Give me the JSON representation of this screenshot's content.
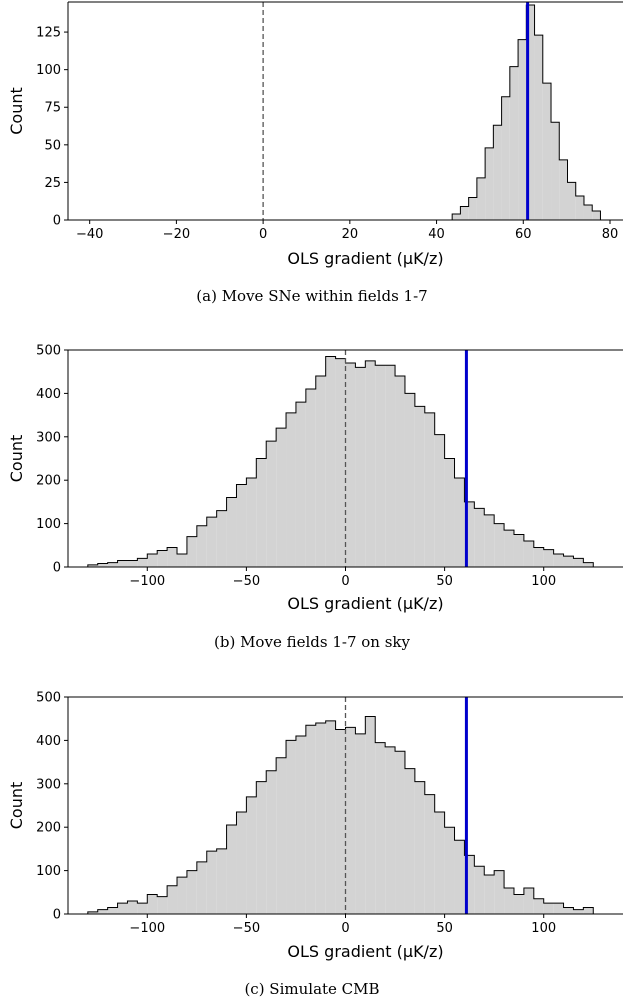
{
  "chart_data": [
    {
      "type": "bar",
      "caption": "(a) Move SNe within fields 1-7",
      "xlabel": "OLS gradient (μK/z)",
      "ylabel": "Count",
      "xlim": [
        -45,
        83
      ],
      "ylim": [
        0,
        145
      ],
      "xticks": [
        -40,
        -20,
        0,
        20,
        40,
        60,
        80
      ],
      "yticks": [
        0,
        25,
        50,
        75,
        100,
        125
      ],
      "grid": false,
      "observed_line": {
        "x": 61,
        "color": "#0000cc"
      },
      "zero_line": {
        "x": 0,
        "color": "#555555"
      },
      "bins": [
        {
          "x0": 43.6,
          "x1": 45.5,
          "count": 4
        },
        {
          "x0": 45.5,
          "x1": 47.4,
          "count": 9
        },
        {
          "x0": 47.4,
          "x1": 49.3,
          "count": 15
        },
        {
          "x0": 49.3,
          "x1": 51.2,
          "count": 28
        },
        {
          "x0": 51.2,
          "x1": 53.1,
          "count": 48
        },
        {
          "x0": 53.1,
          "x1": 55.0,
          "count": 63
        },
        {
          "x0": 55.0,
          "x1": 56.9,
          "count": 82
        },
        {
          "x0": 56.9,
          "x1": 58.8,
          "count": 102
        },
        {
          "x0": 58.8,
          "x1": 60.7,
          "count": 120
        },
        {
          "x0": 60.7,
          "x1": 62.6,
          "count": 143
        },
        {
          "x0": 62.6,
          "x1": 64.5,
          "count": 123
        },
        {
          "x0": 64.5,
          "x1": 66.4,
          "count": 91
        },
        {
          "x0": 66.4,
          "x1": 68.3,
          "count": 65
        },
        {
          "x0": 68.3,
          "x1": 70.2,
          "count": 40
        },
        {
          "x0": 70.2,
          "x1": 72.1,
          "count": 25
        },
        {
          "x0": 72.1,
          "x1": 74.0,
          "count": 16
        },
        {
          "x0": 74.0,
          "x1": 75.9,
          "count": 10
        },
        {
          "x0": 75.9,
          "x1": 77.8,
          "count": 6
        }
      ]
    },
    {
      "type": "bar",
      "caption": "(b) Move fields 1-7 on sky",
      "xlabel": "OLS gradient (μK/z)",
      "ylabel": "Count",
      "xlim": [
        -140,
        140
      ],
      "ylim": [
        0,
        500
      ],
      "xticks": [
        -100,
        -50,
        0,
        50,
        100
      ],
      "yticks": [
        0,
        100,
        200,
        300,
        400,
        500
      ],
      "grid": false,
      "observed_line": {
        "x": 61,
        "color": "#0000cc"
      },
      "zero_line": {
        "x": 0,
        "color": "#555555"
      },
      "bins": [
        {
          "x0": -130,
          "x1": -125,
          "count": 5
        },
        {
          "x0": -125,
          "x1": -120,
          "count": 8
        },
        {
          "x0": -120,
          "x1": -115,
          "count": 10
        },
        {
          "x0": -115,
          "x1": -110,
          "count": 15
        },
        {
          "x0": -110,
          "x1": -105,
          "count": 15
        },
        {
          "x0": -105,
          "x1": -100,
          "count": 20
        },
        {
          "x0": -100,
          "x1": -95,
          "count": 30
        },
        {
          "x0": -95,
          "x1": -90,
          "count": 38
        },
        {
          "x0": -90,
          "x1": -85,
          "count": 45
        },
        {
          "x0": -85,
          "x1": -80,
          "count": 30
        },
        {
          "x0": -80,
          "x1": -75,
          "count": 70
        },
        {
          "x0": -75,
          "x1": -70,
          "count": 95
        },
        {
          "x0": -70,
          "x1": -65,
          "count": 115
        },
        {
          "x0": -65,
          "x1": -60,
          "count": 130
        },
        {
          "x0": -60,
          "x1": -55,
          "count": 160
        },
        {
          "x0": -55,
          "x1": -50,
          "count": 190
        },
        {
          "x0": -50,
          "x1": -45,
          "count": 205
        },
        {
          "x0": -45,
          "x1": -40,
          "count": 250
        },
        {
          "x0": -40,
          "x1": -35,
          "count": 290
        },
        {
          "x0": -35,
          "x1": -30,
          "count": 320
        },
        {
          "x0": -30,
          "x1": -25,
          "count": 355
        },
        {
          "x0": -25,
          "x1": -20,
          "count": 380
        },
        {
          "x0": -20,
          "x1": -15,
          "count": 410
        },
        {
          "x0": -15,
          "x1": -10,
          "count": 440
        },
        {
          "x0": -10,
          "x1": -5,
          "count": 485
        },
        {
          "x0": -5,
          "x1": 0,
          "count": 480
        },
        {
          "x0": 0,
          "x1": 5,
          "count": 470
        },
        {
          "x0": 5,
          "x1": 10,
          "count": 460
        },
        {
          "x0": 10,
          "x1": 15,
          "count": 475
        },
        {
          "x0": 15,
          "x1": 20,
          "count": 465
        },
        {
          "x0": 20,
          "x1": 25,
          "count": 465
        },
        {
          "x0": 25,
          "x1": 30,
          "count": 440
        },
        {
          "x0": 30,
          "x1": 35,
          "count": 400
        },
        {
          "x0": 35,
          "x1": 40,
          "count": 370
        },
        {
          "x0": 40,
          "x1": 45,
          "count": 355
        },
        {
          "x0": 45,
          "x1": 50,
          "count": 305
        },
        {
          "x0": 50,
          "x1": 55,
          "count": 250
        },
        {
          "x0": 55,
          "x1": 60,
          "count": 205
        },
        {
          "x0": 60,
          "x1": 65,
          "count": 150
        },
        {
          "x0": 65,
          "x1": 70,
          "count": 135
        },
        {
          "x0": 70,
          "x1": 75,
          "count": 120
        },
        {
          "x0": 75,
          "x1": 80,
          "count": 100
        },
        {
          "x0": 80,
          "x1": 85,
          "count": 85
        },
        {
          "x0": 85,
          "x1": 90,
          "count": 75
        },
        {
          "x0": 90,
          "x1": 95,
          "count": 60
        },
        {
          "x0": 95,
          "x1": 100,
          "count": 45
        },
        {
          "x0": 100,
          "x1": 105,
          "count": 40
        },
        {
          "x0": 105,
          "x1": 110,
          "count": 30
        },
        {
          "x0": 110,
          "x1": 115,
          "count": 25
        },
        {
          "x0": 115,
          "x1": 120,
          "count": 20
        },
        {
          "x0": 120,
          "x1": 125,
          "count": 10
        }
      ]
    },
    {
      "type": "bar",
      "caption": "(c) Simulate CMB",
      "xlabel": "OLS gradient (μK/z)",
      "ylabel": "Count",
      "xlim": [
        -140,
        140
      ],
      "ylim": [
        0,
        500
      ],
      "xticks": [
        -100,
        -50,
        0,
        50,
        100
      ],
      "yticks": [
        0,
        100,
        200,
        300,
        400,
        500
      ],
      "grid": false,
      "observed_line": {
        "x": 61,
        "color": "#0000cc"
      },
      "zero_line": {
        "x": 0,
        "color": "#555555"
      },
      "bins": [
        {
          "x0": -130,
          "x1": -125,
          "count": 5
        },
        {
          "x0": -125,
          "x1": -120,
          "count": 10
        },
        {
          "x0": -120,
          "x1": -115,
          "count": 15
        },
        {
          "x0": -115,
          "x1": -110,
          "count": 25
        },
        {
          "x0": -110,
          "x1": -105,
          "count": 30
        },
        {
          "x0": -105,
          "x1": -100,
          "count": 25
        },
        {
          "x0": -100,
          "x1": -95,
          "count": 45
        },
        {
          "x0": -95,
          "x1": -90,
          "count": 40
        },
        {
          "x0": -90,
          "x1": -85,
          "count": 65
        },
        {
          "x0": -85,
          "x1": -80,
          "count": 85
        },
        {
          "x0": -80,
          "x1": -75,
          "count": 100
        },
        {
          "x0": -75,
          "x1": -70,
          "count": 120
        },
        {
          "x0": -70,
          "x1": -65,
          "count": 145
        },
        {
          "x0": -65,
          "x1": -60,
          "count": 150
        },
        {
          "x0": -60,
          "x1": -55,
          "count": 205
        },
        {
          "x0": -55,
          "x1": -50,
          "count": 235
        },
        {
          "x0": -50,
          "x1": -45,
          "count": 270
        },
        {
          "x0": -45,
          "x1": -40,
          "count": 305
        },
        {
          "x0": -40,
          "x1": -35,
          "count": 330
        },
        {
          "x0": -35,
          "x1": -30,
          "count": 360
        },
        {
          "x0": -30,
          "x1": -25,
          "count": 400
        },
        {
          "x0": -25,
          "x1": -20,
          "count": 410
        },
        {
          "x0": -20,
          "x1": -15,
          "count": 435
        },
        {
          "x0": -15,
          "x1": -10,
          "count": 440
        },
        {
          "x0": -10,
          "x1": -5,
          "count": 445
        },
        {
          "x0": -5,
          "x1": 0,
          "count": 425
        },
        {
          "x0": 0,
          "x1": 5,
          "count": 430
        },
        {
          "x0": 5,
          "x1": 10,
          "count": 415
        },
        {
          "x0": 10,
          "x1": 15,
          "count": 455
        },
        {
          "x0": 15,
          "x1": 20,
          "count": 395
        },
        {
          "x0": 20,
          "x1": 25,
          "count": 385
        },
        {
          "x0": 25,
          "x1": 30,
          "count": 375
        },
        {
          "x0": 30,
          "x1": 35,
          "count": 335
        },
        {
          "x0": 35,
          "x1": 40,
          "count": 305
        },
        {
          "x0": 40,
          "x1": 45,
          "count": 275
        },
        {
          "x0": 45,
          "x1": 50,
          "count": 235
        },
        {
          "x0": 50,
          "x1": 55,
          "count": 200
        },
        {
          "x0": 55,
          "x1": 60,
          "count": 170
        },
        {
          "x0": 60,
          "x1": 65,
          "count": 135
        },
        {
          "x0": 65,
          "x1": 70,
          "count": 110
        },
        {
          "x0": 70,
          "x1": 75,
          "count": 90
        },
        {
          "x0": 75,
          "x1": 80,
          "count": 100
        },
        {
          "x0": 80,
          "x1": 85,
          "count": 60
        },
        {
          "x0": 85,
          "x1": 90,
          "count": 45
        },
        {
          "x0": 90,
          "x1": 95,
          "count": 60
        },
        {
          "x0": 95,
          "x1": 100,
          "count": 35
        },
        {
          "x0": 100,
          "x1": 105,
          "count": 25
        },
        {
          "x0": 105,
          "x1": 110,
          "count": 25
        },
        {
          "x0": 110,
          "x1": 115,
          "count": 15
        },
        {
          "x0": 115,
          "x1": 120,
          "count": 10
        },
        {
          "x0": 120,
          "x1": 125,
          "count": 15
        }
      ]
    }
  ],
  "colors": {
    "bar_fill": "#d3d3d3",
    "bar_stroke": "#000000"
  }
}
